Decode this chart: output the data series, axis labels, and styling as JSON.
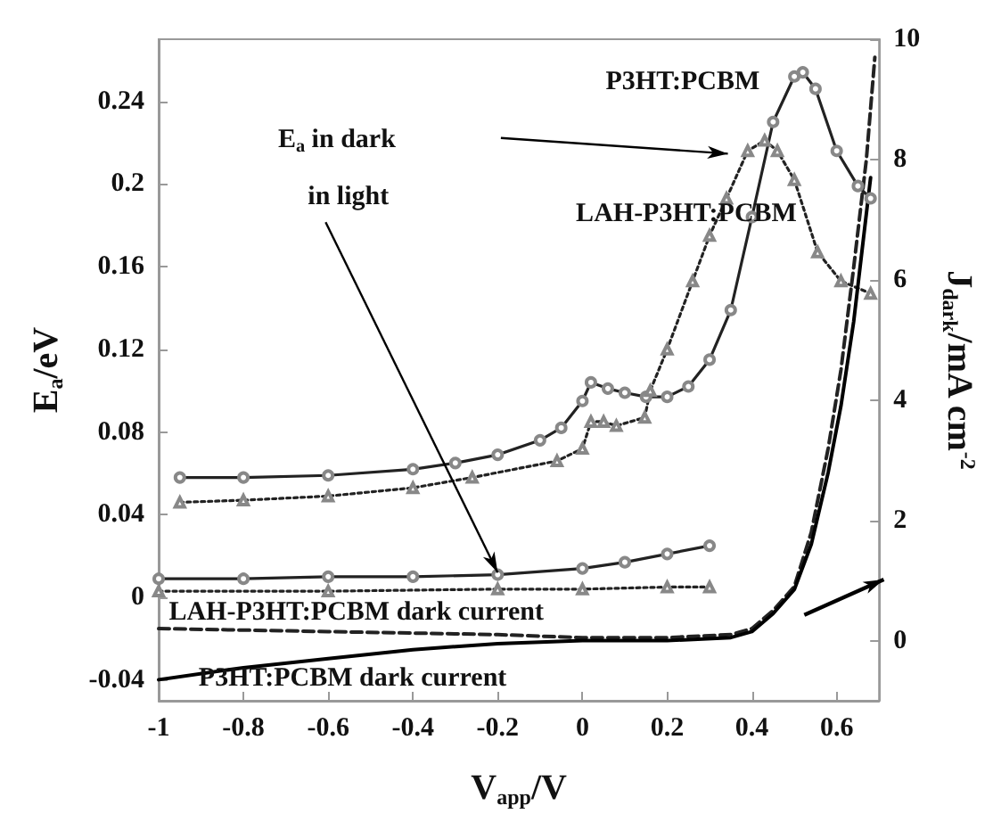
{
  "chart_data": {
    "type": "line",
    "xlabel": "V$_{app}$/V",
    "ylabel": "E$_{a}$/eV",
    "y2label": "J$_{dark}$/mA cm$^{-2}$",
    "xlim": [
      -1,
      0.7
    ],
    "xticks": [
      -1,
      -0.8,
      -0.6,
      -0.4,
      -0.2,
      0,
      0.2,
      0.4,
      0.6
    ],
    "ylim": [
      -0.05,
      0.27
    ],
    "yticks": [
      -0.04,
      0,
      0.04,
      0.08,
      0.12,
      0.16,
      0.2,
      0.24
    ],
    "y2lim": [
      -1,
      10
    ],
    "y2ticks": [
      0,
      2,
      4,
      6,
      8,
      10
    ],
    "grid": false,
    "annotations": [
      "E$_{a}$ in dark",
      {
        "text": "in light",
        "x": -0.2,
        "y": 0.012
      },
      "P3HT:PCBM",
      "LAH-P3HT:PCBM",
      "LAH-P3HT:PCBM dark current",
      "P3HT:PCBM dark current"
    ],
    "series": [
      {
        "color": "#222222",
        "marker": "circle",
        "line_style": "solid",
        "x": [
          -0.95,
          -0.8,
          -0.6,
          -0.4,
          -0.3,
          -0.2,
          -0.1,
          -0.05,
          0,
          0.02,
          0.06,
          0.1,
          0.15,
          0.2,
          0.25,
          0.3,
          0.35,
          0.4,
          0.45,
          0.5,
          0.52,
          0.55,
          0.6,
          0.65,
          0.68
        ],
        "values": [
          0.058,
          0.058,
          0.059,
          0.062,
          0.065,
          0.069,
          0.076,
          0.082,
          0.095,
          0.104,
          0.101,
          0.099,
          0.097,
          0.097,
          0.102,
          0.115,
          0.139,
          0.184,
          0.23,
          0.252,
          0.254,
          0.246,
          0.216,
          0.199,
          0.193
        ]
      },
      {
        "color": "#222222",
        "marker": "triangle",
        "line_style": "dotted",
        "x": [
          -0.95,
          -0.8,
          -0.6,
          -0.4,
          -0.26,
          -0.06,
          0,
          0.02,
          0.05,
          0.08,
          0.147,
          0.16,
          0.2,
          0.26,
          0.3,
          0.34,
          0.39,
          0.43,
          0.46,
          0.5,
          0.555,
          0.61,
          0.68
        ],
        "values": [
          0.046,
          0.047,
          0.049,
          0.053,
          0.058,
          0.066,
          0.072,
          0.085,
          0.085,
          0.083,
          0.087,
          0.1,
          0.12,
          0.153,
          0.175,
          0.193,
          0.216,
          0.221,
          0.216,
          0.202,
          0.167,
          0.153,
          0.147
        ]
      },
      {
        "color": "#222222",
        "marker": "circle",
        "line_style": "solid",
        "x": [
          -1,
          -0.8,
          -0.6,
          -0.4,
          -0.2,
          0,
          0.1,
          0.2,
          0.3
        ],
        "values": [
          0.009,
          0.009,
          0.01,
          0.01,
          0.011,
          0.014,
          0.017,
          0.021,
          0.025
        ]
      },
      {
        "color": "#222222",
        "marker": "triangle",
        "line_style": "dotted",
        "x": [
          -1,
          -0.6,
          -0.2,
          0,
          0.2,
          0.3
        ],
        "values": [
          0.003,
          0.003,
          0.004,
          0.004,
          0.005,
          0.005
        ]
      },
      {
        "color": "#222222",
        "marker": "none",
        "line_style": "dashed",
        "axis": "y2",
        "x": [
          -1,
          -0.6,
          -0.2,
          0,
          0.2,
          0.35,
          0.4,
          0.45,
          0.5,
          0.54,
          0.58,
          0.61,
          0.64,
          0.67,
          0.69
        ],
        "values": [
          0.2,
          0.15,
          0.1,
          0.05,
          0.05,
          0.1,
          0.2,
          0.5,
          0.9,
          1.8,
          3.2,
          4.5,
          6.2,
          8,
          9.7
        ]
      },
      {
        "color": "#000000",
        "marker": "none",
        "line_style": "solid",
        "axis": "y2",
        "x": [
          -1,
          -0.8,
          -0.6,
          -0.4,
          -0.2,
          0,
          0.2,
          0.35,
          0.4,
          0.45,
          0.5,
          0.54,
          0.58,
          0.61,
          0.64,
          0.68
        ],
        "values": [
          -0.65,
          -0.45,
          -0.3,
          -0.15,
          -0.05,
          0,
          0,
          0.05,
          0.15,
          0.45,
          0.85,
          1.6,
          2.8,
          3.9,
          5.3,
          7.7
        ]
      }
    ]
  }
}
